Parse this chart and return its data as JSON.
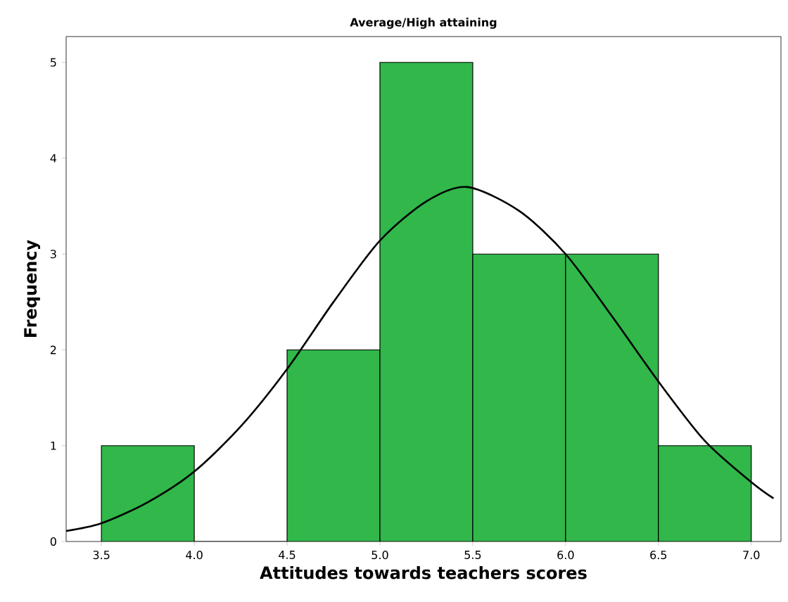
{
  "chart_data": {
    "type": "histogram",
    "title": "Average/High attaining",
    "xlabel": "Attitudes towards teachers scores",
    "ylabel": "Frequency",
    "bins": [
      3.5,
      4.0,
      4.5,
      5.0,
      5.5,
      6.0,
      6.5,
      7.0
    ],
    "values": [
      1,
      0,
      2,
      5,
      3,
      3,
      1
    ],
    "color": "#31b74a",
    "series": [
      {
        "type": "line",
        "color": "#000000",
        "x": [
          3.31,
          3.5,
          3.75,
          4.0,
          4.25,
          4.5,
          4.75,
          5.0,
          5.25,
          5.47,
          5.75,
          6.0,
          6.25,
          6.5,
          6.75,
          7.0,
          7.12
        ],
        "values": [
          0.11,
          0.19,
          0.41,
          0.73,
          1.2,
          1.8,
          2.5,
          3.14,
          3.55,
          3.7,
          3.45,
          3.0,
          2.35,
          1.67,
          1.05,
          0.62,
          0.45
        ]
      }
    ],
    "xlim": [
      3.31,
      7.16
    ],
    "ylim": [
      0,
      5.27
    ],
    "xticks": [
      {
        "value": 3.5,
        "label": "3.5"
      },
      {
        "value": 4.0,
        "label": "4.0"
      },
      {
        "value": 4.5,
        "label": "4.5"
      },
      {
        "value": 5.0,
        "label": "5.0"
      },
      {
        "value": 5.5,
        "label": "5.5"
      },
      {
        "value": 6.0,
        "label": "6.0"
      },
      {
        "value": 6.5,
        "label": "6.5"
      },
      {
        "value": 7.0,
        "label": "7.0"
      }
    ],
    "yticks": [
      0,
      1,
      2,
      3,
      4,
      5
    ],
    "grid": false
  }
}
